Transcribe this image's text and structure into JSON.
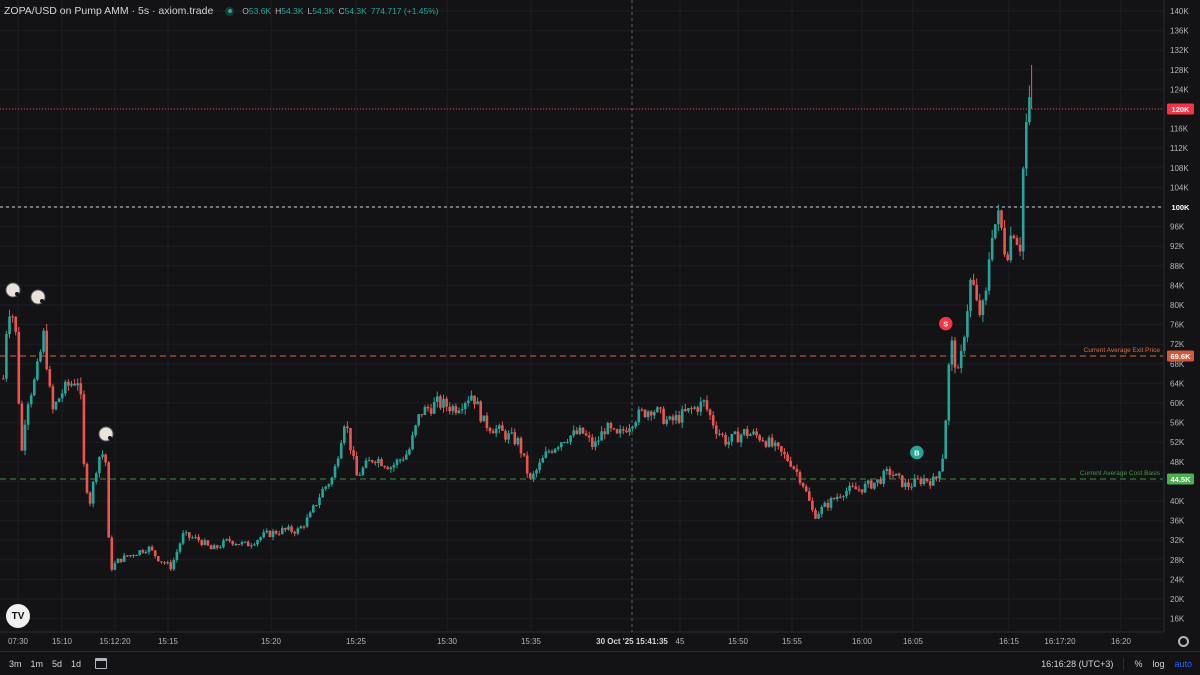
{
  "header": {
    "title": "ZOPA/USD on Pump AMM · 5s · axiom.trade",
    "ohlc": {
      "o_label": "O",
      "o_value": "53.6K",
      "h_label": "H",
      "h_value": "54.3K",
      "l_label": "L",
      "l_value": "54.3K",
      "c_label": "C",
      "c_value": "54.3K",
      "change": "774.717 (+1.45%)"
    }
  },
  "colors": {
    "background": "#131316",
    "up": "#26a69a",
    "down": "#ef5350",
    "grid": "#1c1e24",
    "text": "#b2b5be",
    "exit_line": "#ff7f50",
    "cost_line": "#4caf50"
  },
  "chart_data": {
    "type": "candlestick",
    "y_axis": {
      "ticks": [
        "140K",
        "136K",
        "132K",
        "128K",
        "124K",
        "120K",
        "116K",
        "112K",
        "108K",
        "104K",
        "100K",
        "96K",
        "92K",
        "88K",
        "84K",
        "80K",
        "76K",
        "72K",
        "68K",
        "64K",
        "60K",
        "56K",
        "52K",
        "48K",
        "44K",
        "40K",
        "36K",
        "32K",
        "28K",
        "24K",
        "20K",
        "16K"
      ],
      "min": 16000,
      "max": 140000
    },
    "x_axis": {
      "ticks": [
        "07:30",
        "15:10",
        "15:12:20",
        "15:15",
        "15:20",
        "15:25",
        "15:30",
        "15:35",
        "45",
        "15:50",
        "15:55",
        "16:00",
        "16:05",
        "16:15",
        "16:17:20",
        "16:20"
      ],
      "crosshair_label": "30 Oct '25   15:41:35"
    },
    "price_labels": [
      {
        "value": 120000,
        "label": "120K",
        "color": "#f23645"
      },
      {
        "value": 100000,
        "label": "100K",
        "color": "#ffffff"
      },
      {
        "value": 69600,
        "label": "69.6K",
        "color": "#d25a3c"
      },
      {
        "value": 44500,
        "label": "44.5K",
        "color": "#4caf50"
      }
    ],
    "lines": [
      {
        "name": "Current Average Exit Price",
        "value": 69600,
        "color": "#ff7f50"
      },
      {
        "name": "Current Average Cost Basis",
        "value": 44500,
        "color": "#4caf50"
      }
    ],
    "markers": [
      {
        "type": "sell",
        "label": "S",
        "time": 0.815,
        "value": 76200
      },
      {
        "type": "buy",
        "label": "B",
        "time": 0.79,
        "value": 49900
      }
    ],
    "path": [
      [
        0.0,
        65000
      ],
      [
        0.004,
        80000
      ],
      [
        0.008,
        78000
      ],
      [
        0.012,
        72000
      ],
      [
        0.015,
        47500
      ],
      [
        0.02,
        60000
      ],
      [
        0.028,
        65000
      ],
      [
        0.035,
        74000
      ],
      [
        0.042,
        58000
      ],
      [
        0.05,
        62000
      ],
      [
        0.058,
        64000
      ],
      [
        0.066,
        65000
      ],
      [
        0.07,
        45000
      ],
      [
        0.075,
        40000
      ],
      [
        0.082,
        49000
      ],
      [
        0.088,
        50000
      ],
      [
        0.092,
        26000
      ],
      [
        0.1,
        28000
      ],
      [
        0.11,
        29000
      ],
      [
        0.125,
        30500
      ],
      [
        0.135,
        28000
      ],
      [
        0.145,
        26500
      ],
      [
        0.155,
        33000
      ],
      [
        0.17,
        32000
      ],
      [
        0.18,
        30000
      ],
      [
        0.195,
        32000
      ],
      [
        0.21,
        31000
      ],
      [
        0.225,
        33000
      ],
      [
        0.24,
        34000
      ],
      [
        0.255,
        34000
      ],
      [
        0.265,
        37000
      ],
      [
        0.275,
        42000
      ],
      [
        0.285,
        45000
      ],
      [
        0.295,
        57000
      ],
      [
        0.305,
        45000
      ],
      [
        0.32,
        49000
      ],
      [
        0.335,
        47000
      ],
      [
        0.35,
        50000
      ],
      [
        0.36,
        58000
      ],
      [
        0.375,
        60000
      ],
      [
        0.39,
        59000
      ],
      [
        0.405,
        62000
      ],
      [
        0.415,
        56000
      ],
      [
        0.43,
        54000
      ],
      [
        0.445,
        52000
      ],
      [
        0.455,
        44000
      ],
      [
        0.47,
        50000
      ],
      [
        0.485,
        53000
      ],
      [
        0.5,
        54000
      ],
      [
        0.51,
        51000
      ],
      [
        0.52,
        55000
      ],
      [
        0.53,
        53000
      ],
      [
        0.545,
        57000
      ],
      [
        0.56,
        59000
      ],
      [
        0.575,
        56000
      ],
      [
        0.59,
        58000
      ],
      [
        0.605,
        60000
      ],
      [
        0.615,
        55000
      ],
      [
        0.625,
        52000
      ],
      [
        0.64,
        54000
      ],
      [
        0.655,
        53000
      ],
      [
        0.665,
        51000
      ],
      [
        0.68,
        48000
      ],
      [
        0.69,
        44000
      ],
      [
        0.7,
        37000
      ],
      [
        0.71,
        39000
      ],
      [
        0.725,
        42000
      ],
      [
        0.74,
        42500
      ],
      [
        0.755,
        44000
      ],
      [
        0.765,
        46000
      ],
      [
        0.78,
        43000
      ],
      [
        0.795,
        44500
      ],
      [
        0.805,
        44000
      ],
      [
        0.812,
        50000
      ],
      [
        0.818,
        73000
      ],
      [
        0.825,
        65000
      ],
      [
        0.83,
        75000
      ],
      [
        0.836,
        86000
      ],
      [
        0.842,
        78000
      ],
      [
        0.848,
        80000
      ],
      [
        0.853,
        95000
      ],
      [
        0.86,
        98000
      ],
      [
        0.866,
        90000
      ],
      [
        0.872,
        96000
      ],
      [
        0.878,
        92000
      ],
      [
        0.882,
        115000
      ],
      [
        0.886,
        120000
      ],
      [
        0.888,
        129000
      ]
    ]
  },
  "bottom_bar": {
    "timeframes": [
      "3m",
      "1m",
      "5d",
      "1d"
    ],
    "clock": "16:16:28 (UTC+3)",
    "percent": "%",
    "log": "log",
    "auto": "auto"
  },
  "icons": {
    "logo": "TV",
    "settings": "gear-icon",
    "calendar": "calendar-icon"
  }
}
